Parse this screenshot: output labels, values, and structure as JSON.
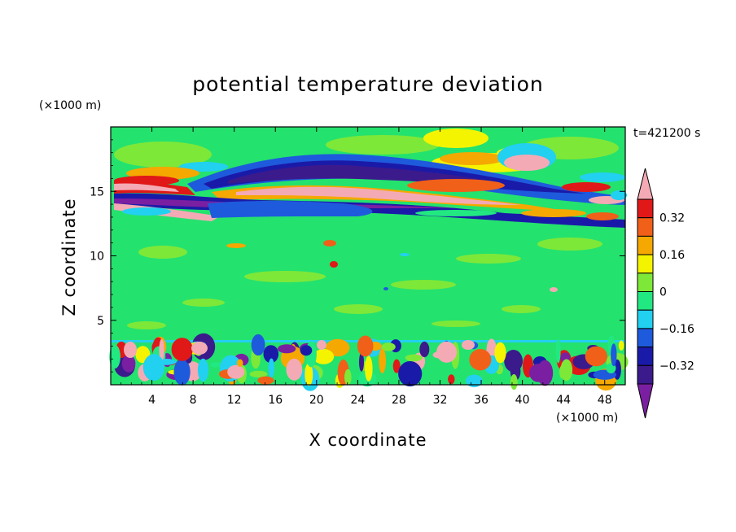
{
  "chart_data": {
    "type": "heatmap",
    "title": "potential temperature deviation",
    "xlabel": "X coordinate",
    "ylabel": "Z coordinate",
    "x_unit": "(×1000 m)",
    "y_unit": "(×1000 m)",
    "time_label": "t=421200 s",
    "xlim": [
      0,
      50
    ],
    "ylim": [
      0,
      20
    ],
    "x_ticks": [
      4,
      8,
      12,
      16,
      20,
      24,
      28,
      32,
      36,
      40,
      44,
      48
    ],
    "y_ticks": [
      5,
      10,
      15
    ],
    "colorbar": {
      "levels": [
        -0.4,
        -0.32,
        -0.24,
        -0.16,
        -0.08,
        0,
        0.08,
        0.16,
        0.24,
        0.32,
        0.4
      ],
      "tick_labels": [
        "0.32",
        "0.16",
        "0",
        "−0.16",
        "−0.32"
      ],
      "colors": [
        "#7b1fa2",
        "#3b1a8c",
        "#1a1aa8",
        "#1e5adc",
        "#22d0f0",
        "#22e882",
        "#7ee838",
        "#f4f400",
        "#f4a800",
        "#f06018",
        "#e01818",
        "#f4aab4"
      ]
    }
  }
}
